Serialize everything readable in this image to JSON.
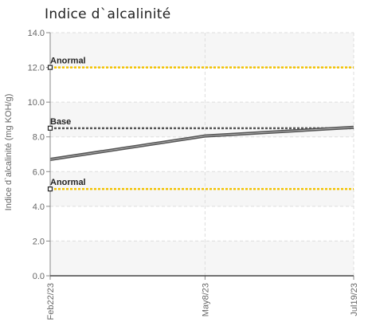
{
  "chart_data": {
    "type": "line",
    "title": "Indice d`alcalinité",
    "xlabel": "",
    "ylabel": "Indice d`alcalinité (mg KOH/g)",
    "x": [
      "Feb22/23",
      "May8/23",
      "Jul19/23"
    ],
    "x_days": [
      0,
      75,
      147
    ],
    "ylim": [
      0,
      14
    ],
    "yticks": [
      "0.0",
      "2.0",
      "4.0",
      "6.0",
      "8.0",
      "10.0",
      "12.0",
      "14.0"
    ],
    "grid": true,
    "series": [
      {
        "values": [
          6.7,
          8.05,
          8.55
        ],
        "color": "#555555"
      }
    ],
    "reference_lines": [
      {
        "label": "Anormal",
        "value": 12.0,
        "color": "#f2c200"
      },
      {
        "label": "Base",
        "value": 8.5,
        "color": "#555555"
      },
      {
        "label": "Anormal",
        "value": 5.0,
        "color": "#f2c200"
      }
    ]
  }
}
